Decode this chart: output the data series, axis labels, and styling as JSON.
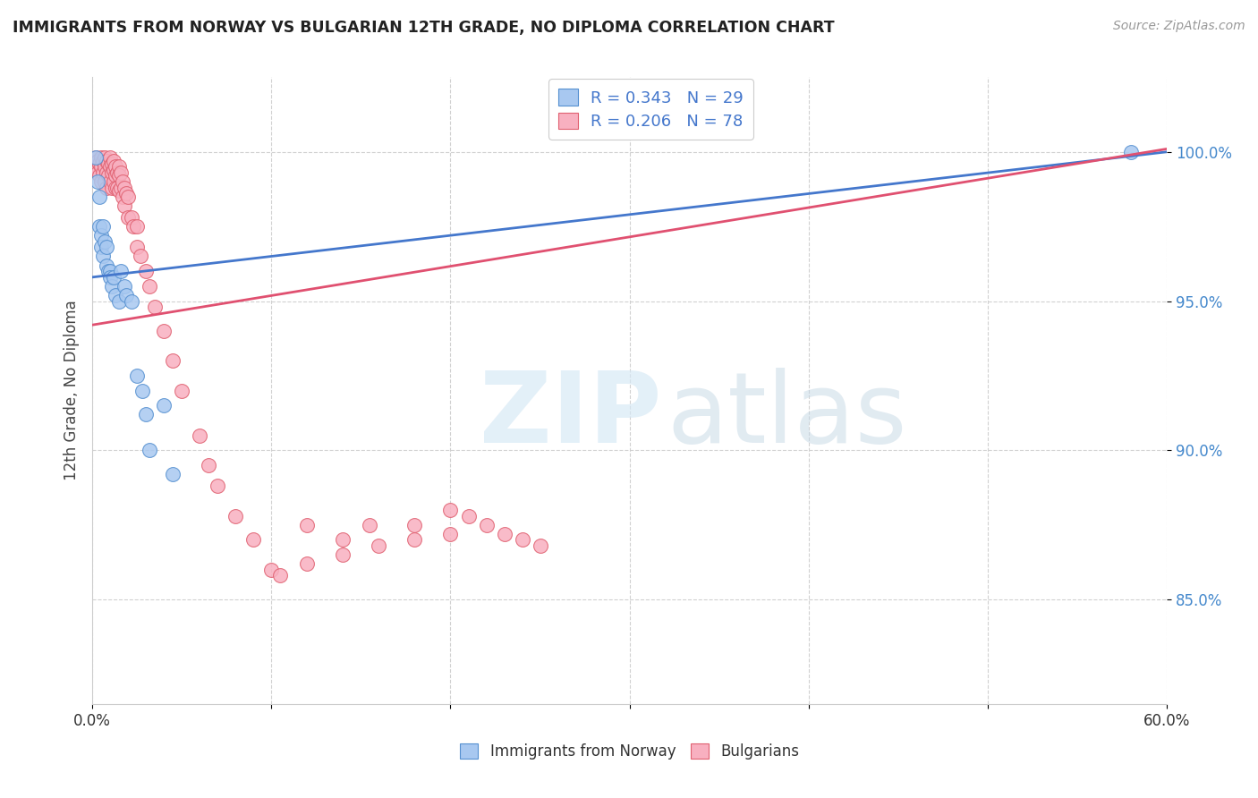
{
  "title": "IMMIGRANTS FROM NORWAY VS BULGARIAN 12TH GRADE, NO DIPLOMA CORRELATION CHART",
  "source": "Source: ZipAtlas.com",
  "ylabel": "12th Grade, No Diploma",
  "ytick_vals": [
    1.0,
    0.95,
    0.9,
    0.85
  ],
  "ytick_labels": [
    "100.0%",
    "95.0%",
    "90.0%",
    "85.0%"
  ],
  "xlim": [
    0.0,
    0.6
  ],
  "ylim": [
    0.815,
    1.025
  ],
  "norway_R": 0.343,
  "norway_N": 29,
  "bulgaria_R": 0.206,
  "bulgaria_N": 78,
  "norway_color": "#A8C8F0",
  "norway_edge_color": "#5590D0",
  "norway_line_color": "#4477CC",
  "bulgaria_color": "#F8B0C0",
  "bulgaria_edge_color": "#E06070",
  "bulgaria_line_color": "#E05070",
  "norway_line_x0": 0.0,
  "norway_line_y0": 0.958,
  "norway_line_x1": 0.6,
  "norway_line_y1": 1.0,
  "bulgaria_line_x0": 0.0,
  "bulgaria_line_y0": 0.942,
  "bulgaria_line_x1": 0.6,
  "bulgaria_line_y1": 1.001,
  "norway_scatter_x": [
    0.002,
    0.003,
    0.004,
    0.004,
    0.005,
    0.005,
    0.006,
    0.006,
    0.007,
    0.008,
    0.008,
    0.009,
    0.01,
    0.01,
    0.011,
    0.012,
    0.013,
    0.015,
    0.016,
    0.018,
    0.019,
    0.022,
    0.025,
    0.028,
    0.03,
    0.032,
    0.04,
    0.045,
    0.58
  ],
  "norway_scatter_y": [
    0.998,
    0.99,
    0.985,
    0.975,
    0.972,
    0.968,
    0.965,
    0.975,
    0.97,
    0.968,
    0.962,
    0.96,
    0.96,
    0.958,
    0.955,
    0.958,
    0.952,
    0.95,
    0.96,
    0.955,
    0.952,
    0.95,
    0.925,
    0.92,
    0.912,
    0.9,
    0.915,
    0.892,
    1.0
  ],
  "bulgaria_scatter_x": [
    0.002,
    0.002,
    0.003,
    0.003,
    0.004,
    0.004,
    0.005,
    0.005,
    0.005,
    0.006,
    0.006,
    0.007,
    0.007,
    0.007,
    0.008,
    0.008,
    0.008,
    0.009,
    0.009,
    0.01,
    0.01,
    0.01,
    0.011,
    0.011,
    0.011,
    0.012,
    0.012,
    0.012,
    0.013,
    0.013,
    0.013,
    0.014,
    0.014,
    0.015,
    0.015,
    0.015,
    0.016,
    0.016,
    0.017,
    0.017,
    0.018,
    0.018,
    0.019,
    0.02,
    0.02,
    0.022,
    0.023,
    0.025,
    0.025,
    0.027,
    0.03,
    0.032,
    0.035,
    0.04,
    0.045,
    0.05,
    0.06,
    0.065,
    0.07,
    0.08,
    0.09,
    0.1,
    0.12,
    0.14,
    0.155,
    0.18,
    0.2,
    0.21,
    0.22,
    0.23,
    0.24,
    0.25,
    0.2,
    0.18,
    0.16,
    0.14,
    0.12,
    0.105
  ],
  "bulgaria_scatter_y": [
    0.998,
    0.995,
    0.997,
    0.993,
    0.996,
    0.992,
    0.998,
    0.995,
    0.99,
    0.997,
    0.993,
    0.998,
    0.995,
    0.99,
    0.997,
    0.993,
    0.988,
    0.996,
    0.992,
    0.998,
    0.995,
    0.99,
    0.996,
    0.993,
    0.988,
    0.997,
    0.994,
    0.99,
    0.995,
    0.992,
    0.988,
    0.993,
    0.988,
    0.995,
    0.992,
    0.987,
    0.993,
    0.988,
    0.99,
    0.985,
    0.988,
    0.982,
    0.986,
    0.985,
    0.978,
    0.978,
    0.975,
    0.975,
    0.968,
    0.965,
    0.96,
    0.955,
    0.948,
    0.94,
    0.93,
    0.92,
    0.905,
    0.895,
    0.888,
    0.878,
    0.87,
    0.86,
    0.875,
    0.87,
    0.875,
    0.875,
    0.88,
    0.878,
    0.875,
    0.872,
    0.87,
    0.868,
    0.872,
    0.87,
    0.868,
    0.865,
    0.862,
    0.858
  ]
}
